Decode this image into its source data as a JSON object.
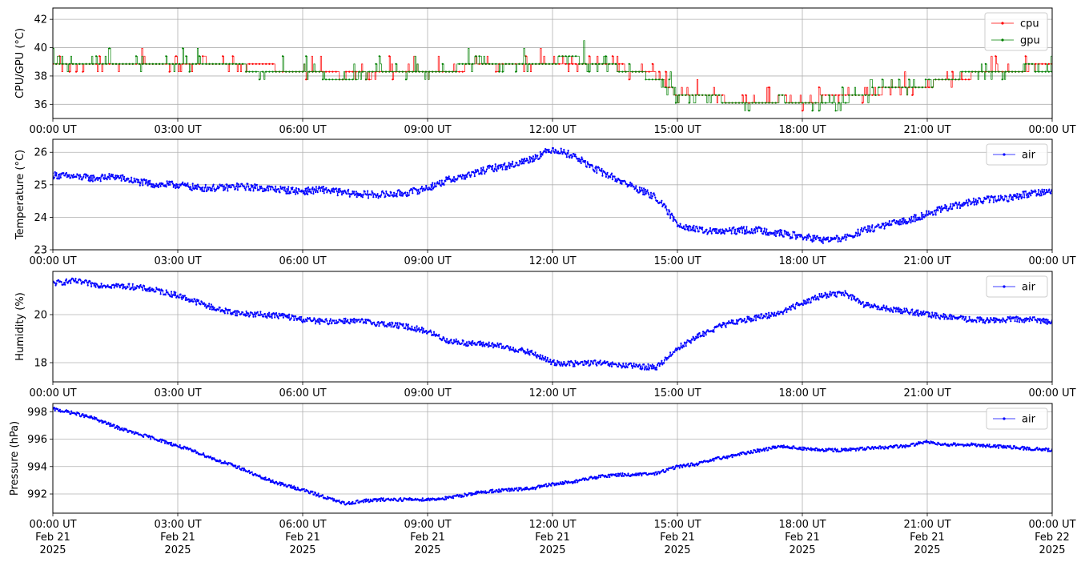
{
  "chart_data": [
    {
      "type": "line",
      "ylabel": "CPU/GPU (°C)",
      "ylim": [
        35.0,
        42.8
      ],
      "yticks": [
        36,
        38,
        40,
        42
      ],
      "xlim": [
        "2025-02-21T00:00",
        "2025-02-22T00:00"
      ],
      "xtick_labels": [
        "00:00 UT",
        "03:00 UT",
        "06:00 UT",
        "09:00 UT",
        "12:00 UT",
        "15:00 UT",
        "18:00 UT",
        "21:00 UT",
        "00:00 UT"
      ],
      "grid": true,
      "legend_position": "top-right",
      "series": [
        {
          "name": "cpu",
          "color": "#ff0000",
          "x_hours": [
            0,
            0.5,
            1,
            1.5,
            2,
            2.5,
            3,
            3.5,
            4,
            4.5,
            5,
            5.5,
            6,
            6.5,
            7,
            7.5,
            8,
            8.5,
            9,
            9.5,
            10,
            10.5,
            11,
            11.5,
            12,
            12.5,
            13,
            13.5,
            14,
            14.5,
            15,
            15.5,
            16,
            16.5,
            17,
            17.5,
            18,
            18.5,
            19,
            19.5,
            20,
            20.5,
            21,
            21.5,
            22,
            22.5,
            23,
            23.5,
            24
          ],
          "values": [
            39.2,
            39.1,
            39.1,
            39.2,
            39.1,
            39.0,
            39.1,
            39.1,
            39.0,
            39.0,
            38.9,
            38.7,
            38.6,
            38.3,
            38.2,
            38.4,
            38.5,
            38.6,
            38.6,
            38.7,
            38.8,
            39.0,
            39.1,
            39.1,
            39.2,
            39.3,
            39.1,
            38.9,
            38.6,
            38.2,
            36.8,
            36.6,
            36.6,
            36.5,
            36.5,
            36.6,
            36.5,
            36.6,
            36.6,
            36.8,
            37.2,
            37.4,
            37.6,
            37.9,
            38.2,
            38.5,
            38.7,
            38.8,
            38.8
          ]
        },
        {
          "name": "gpu",
          "color": "#008000",
          "x_hours": [
            0,
            0.5,
            1,
            1.5,
            2,
            2.5,
            3,
            3.5,
            4,
            4.5,
            5,
            5.5,
            6,
            6.5,
            7,
            7.5,
            8,
            8.5,
            9,
            9.5,
            10,
            10.5,
            11,
            11.5,
            12,
            12.5,
            13,
            13.5,
            14,
            14.5,
            15,
            15.5,
            16,
            16.5,
            17,
            17.5,
            18,
            18.5,
            19,
            19.5,
            20,
            20.5,
            21,
            21.5,
            22,
            22.5,
            23,
            23.5,
            24
          ],
          "values": [
            39.0,
            38.8,
            38.9,
            38.9,
            39.0,
            38.8,
            38.9,
            38.9,
            38.8,
            38.8,
            38.7,
            38.6,
            38.5,
            38.2,
            38.1,
            38.3,
            38.5,
            38.6,
            38.6,
            38.7,
            38.9,
            39.1,
            39.2,
            39.2,
            39.3,
            39.4,
            39.1,
            38.8,
            38.4,
            38.0,
            36.9,
            36.7,
            36.6,
            36.4,
            36.4,
            36.6,
            36.4,
            36.5,
            36.5,
            36.9,
            37.3,
            37.5,
            37.7,
            38.1,
            38.3,
            38.6,
            38.7,
            38.8,
            38.6
          ]
        }
      ]
    },
    {
      "type": "line",
      "ylabel": "Temperature (°C)",
      "ylim": [
        23.0,
        26.4
      ],
      "yticks": [
        23,
        24,
        25,
        26
      ],
      "xlim": [
        "2025-02-21T00:00",
        "2025-02-22T00:00"
      ],
      "xtick_labels": [
        "00:00 UT",
        "03:00 UT",
        "06:00 UT",
        "09:00 UT",
        "12:00 UT",
        "15:00 UT",
        "18:00 UT",
        "21:00 UT",
        "00:00 UT"
      ],
      "grid": true,
      "legend_position": "top-right",
      "series": [
        {
          "name": "air",
          "color": "#0000ff",
          "x_hours": [
            0,
            0.5,
            1,
            1.5,
            2,
            2.5,
            3,
            3.5,
            4,
            4.5,
            5,
            5.5,
            6,
            6.5,
            7,
            7.5,
            8,
            8.5,
            9,
            9.5,
            10,
            10.5,
            11,
            11.5,
            12,
            12.5,
            13,
            13.5,
            14,
            14.5,
            15,
            15.5,
            16,
            16.5,
            17,
            17.5,
            18,
            18.5,
            19,
            19.5,
            20,
            20.5,
            21,
            21.5,
            22,
            22.5,
            23,
            23.5,
            24
          ],
          "values": [
            25.3,
            25.25,
            25.2,
            25.25,
            25.1,
            25.0,
            25.0,
            24.9,
            24.9,
            24.95,
            24.9,
            24.85,
            24.8,
            24.85,
            24.75,
            24.7,
            24.7,
            24.75,
            24.9,
            25.15,
            25.3,
            25.5,
            25.6,
            25.8,
            26.1,
            25.9,
            25.5,
            25.2,
            24.9,
            24.6,
            23.8,
            23.6,
            23.55,
            23.6,
            23.6,
            23.5,
            23.4,
            23.3,
            23.35,
            23.6,
            23.75,
            23.9,
            24.1,
            24.3,
            24.45,
            24.55,
            24.6,
            24.75,
            24.8
          ]
        }
      ]
    },
    {
      "type": "line",
      "ylabel": "Humidity (%)",
      "ylim": [
        17.2,
        21.8
      ],
      "yticks": [
        18,
        20
      ],
      "xlim": [
        "2025-02-21T00:00",
        "2025-02-22T00:00"
      ],
      "xtick_labels": [
        "00:00 UT",
        "03:00 UT",
        "06:00 UT",
        "09:00 UT",
        "12:00 UT",
        "15:00 UT",
        "18:00 UT",
        "21:00 UT",
        "00:00 UT"
      ],
      "grid": true,
      "legend_position": "top-right",
      "series": [
        {
          "name": "air",
          "color": "#0000ff",
          "x_hours": [
            0,
            0.5,
            1,
            1.5,
            2,
            2.5,
            3,
            3.5,
            4,
            4.5,
            5,
            5.5,
            6,
            6.5,
            7,
            7.5,
            8,
            8.5,
            9,
            9.5,
            10,
            10.5,
            11,
            11.5,
            12,
            12.5,
            13,
            13.5,
            14,
            14.5,
            15,
            15.5,
            16,
            16.5,
            17,
            17.5,
            18,
            18.5,
            19,
            19.5,
            20,
            20.5,
            21,
            21.5,
            22,
            22.5,
            23,
            23.5,
            24
          ],
          "values": [
            21.3,
            21.4,
            21.25,
            21.2,
            21.15,
            21.0,
            20.8,
            20.5,
            20.2,
            20.05,
            20.0,
            19.95,
            19.8,
            19.7,
            19.75,
            19.7,
            19.6,
            19.5,
            19.3,
            18.9,
            18.8,
            18.75,
            18.6,
            18.4,
            18.0,
            17.95,
            18.0,
            17.9,
            17.85,
            17.8,
            18.6,
            19.1,
            19.5,
            19.75,
            19.9,
            20.1,
            20.5,
            20.8,
            20.9,
            20.4,
            20.25,
            20.15,
            20.0,
            19.9,
            19.8,
            19.75,
            19.8,
            19.8,
            19.7
          ]
        }
      ]
    },
    {
      "type": "line",
      "ylabel": "Pressure (hPa)",
      "ylim": [
        990.6,
        998.6
      ],
      "yticks": [
        992,
        994,
        996,
        998
      ],
      "xlim": [
        "2025-02-21T00:00",
        "2025-02-22T00:00"
      ],
      "xtick_labels": [
        "00:00 UT\nFeb 21\n2025",
        "03:00 UT\nFeb 21\n2025",
        "06:00 UT\nFeb 21\n2025",
        "09:00 UT\nFeb 21\n2025",
        "12:00 UT\nFeb 21\n2025",
        "15:00 UT\nFeb 21\n2025",
        "18:00 UT\nFeb 21\n2025",
        "21:00 UT\nFeb 21\n2025",
        "00:00 UT\nFeb 22\n2025"
      ],
      "grid": true,
      "legend_position": "top-right",
      "series": [
        {
          "name": "air",
          "color": "#0000ff",
          "x_hours": [
            0,
            0.5,
            1,
            1.5,
            2,
            2.5,
            3,
            3.5,
            4,
            4.5,
            5,
            5.5,
            6,
            6.5,
            7,
            7.5,
            8,
            8.5,
            9,
            9.5,
            10,
            10.5,
            11,
            11.5,
            12,
            12.5,
            13,
            13.5,
            14,
            14.5,
            15,
            15.5,
            16,
            16.5,
            17,
            17.5,
            18,
            18.5,
            19,
            19.5,
            20,
            20.5,
            21,
            21.5,
            22,
            22.5,
            23,
            23.5,
            24
          ],
          "values": [
            998.2,
            997.9,
            997.5,
            996.9,
            996.4,
            996.0,
            995.5,
            995.0,
            994.4,
            993.9,
            993.2,
            992.7,
            992.3,
            991.8,
            991.3,
            991.5,
            991.6,
            991.6,
            991.6,
            991.7,
            992.0,
            992.2,
            992.3,
            992.4,
            992.7,
            992.9,
            993.2,
            993.4,
            993.4,
            993.5,
            994.0,
            994.2,
            994.6,
            994.9,
            995.2,
            995.5,
            995.3,
            995.2,
            995.2,
            995.3,
            995.4,
            995.5,
            995.8,
            995.6,
            995.6,
            995.5,
            995.4,
            995.3,
            995.2
          ]
        }
      ]
    }
  ]
}
